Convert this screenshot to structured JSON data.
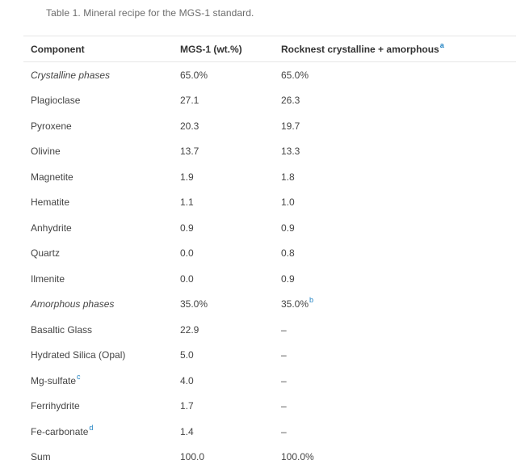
{
  "caption": "Table 1. Mineral recipe for the MGS-1 standard.",
  "headers": {
    "component": "Component",
    "mgs1": "MGS-1 (wt.%)",
    "rocknest": "Rocknest crystalline + amorphous",
    "rocknest_note": "a"
  },
  "rows": [
    {
      "component": "Crystalline phases",
      "mgs1": "65.0%",
      "rocknest": "65.0%"
    },
    {
      "component": "Plagioclase",
      "mgs1": "27.1",
      "rocknest": "26.3"
    },
    {
      "component": "Pyroxene",
      "mgs1": "20.3",
      "rocknest": "19.7"
    },
    {
      "component": "Olivine",
      "mgs1": "13.7",
      "rocknest": "13.3"
    },
    {
      "component": "Magnetite",
      "mgs1": "1.9",
      "rocknest": "1.8"
    },
    {
      "component": "Hematite",
      "mgs1": "1.1",
      "rocknest": "1.0"
    },
    {
      "component": "Anhydrite",
      "mgs1": "0.9",
      "rocknest": "0.9"
    },
    {
      "component": "Quartz",
      "mgs1": "0.0",
      "rocknest": "0.8"
    },
    {
      "component": "Ilmenite",
      "mgs1": "0.0",
      "rocknest": "0.9"
    },
    {
      "component": "Amorphous phases",
      "mgs1": "35.0%",
      "rocknest": "35.0%",
      "rocknest_note": "b"
    },
    {
      "component": "Basaltic Glass",
      "mgs1": "22.9",
      "rocknest": "–"
    },
    {
      "component": "Hydrated Silica (Opal)",
      "mgs1": "5.0",
      "rocknest": "–"
    },
    {
      "component": "Mg-sulfate",
      "component_note": "c",
      "mgs1": "4.0",
      "rocknest": "–"
    },
    {
      "component": "Ferrihydrite",
      "mgs1": "1.7",
      "rocknest": "–"
    },
    {
      "component": "Fe-carbonate",
      "component_note": "d",
      "mgs1": "1.4",
      "rocknest": "–"
    },
    {
      "component": "Sum",
      "mgs1": "100.0",
      "rocknest": "100.0%"
    }
  ]
}
